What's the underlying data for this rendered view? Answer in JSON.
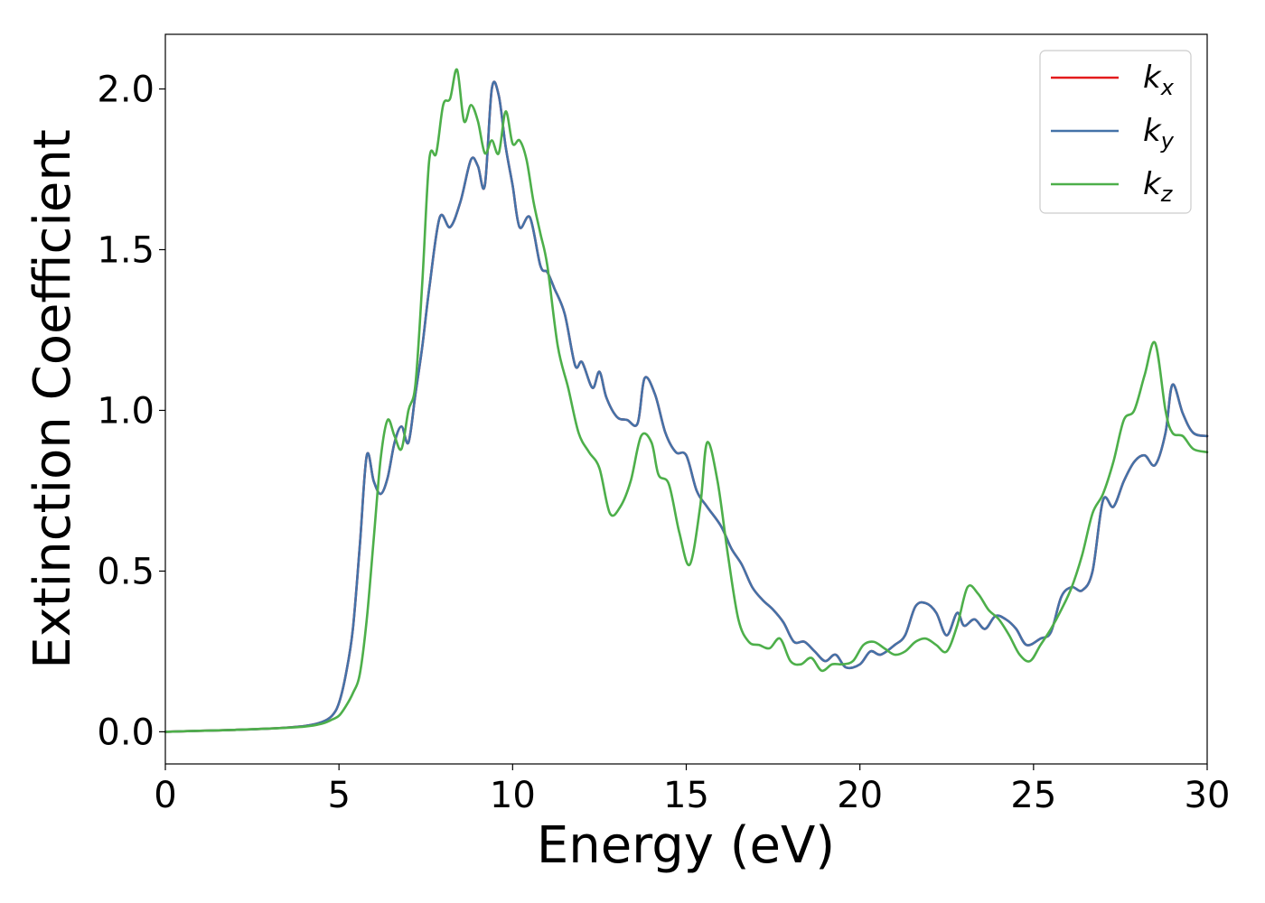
{
  "chart_data": {
    "type": "line",
    "title": "",
    "xlabel": "Energy (eV)",
    "ylabel": "Extinction Coefficient",
    "xlim": [
      0,
      30
    ],
    "ylim": [
      -0.1,
      2.17
    ],
    "x_ticks": [
      "0",
      "5",
      "10",
      "15",
      "20",
      "25",
      "30"
    ],
    "y_ticks": [
      "0.0",
      "0.5",
      "1.0",
      "1.5",
      "2.0"
    ],
    "grid": false,
    "legend_position": "top-right",
    "series": [
      {
        "name": "kx",
        "legend_base": "k",
        "legend_sub": "x",
        "color": "#e31a1c",
        "x": [
          0,
          1,
          2,
          3,
          4,
          4.5,
          4.8,
          5.0,
          5.2,
          5.4,
          5.6,
          5.8,
          6.0,
          6.2,
          6.4,
          6.6,
          6.8,
          7.0,
          7.2,
          7.4,
          7.6,
          7.9,
          8.2,
          8.5,
          8.8,
          9.0,
          9.2,
          9.4,
          9.6,
          9.8,
          10.0,
          10.2,
          10.5,
          10.8,
          11.0,
          11.2,
          11.5,
          11.8,
          12.0,
          12.3,
          12.5,
          12.7,
          13.0,
          13.3,
          13.6,
          13.8,
          14.1,
          14.4,
          14.7,
          15.0,
          15.3,
          15.6,
          16.0,
          16.3,
          16.6,
          16.9,
          17.2,
          17.5,
          17.8,
          18.1,
          18.4,
          18.7,
          19.0,
          19.3,
          19.6,
          20.0,
          20.3,
          20.6,
          21.0,
          21.3,
          21.6,
          21.9,
          22.2,
          22.5,
          22.8,
          23.0,
          23.3,
          23.6,
          23.9,
          24.2,
          24.5,
          24.8,
          25.2,
          25.5,
          25.8,
          26.1,
          26.4,
          26.7,
          27.0,
          27.3,
          27.6,
          27.9,
          28.2,
          28.5,
          28.8,
          29.0,
          29.3,
          29.6,
          30.0
        ],
        "y": [
          0,
          0.003,
          0.006,
          0.01,
          0.018,
          0.03,
          0.05,
          0.09,
          0.18,
          0.32,
          0.58,
          0.86,
          0.78,
          0.74,
          0.79,
          0.9,
          0.95,
          0.9,
          1.05,
          1.2,
          1.38,
          1.6,
          1.57,
          1.65,
          1.78,
          1.76,
          1.7,
          2.0,
          1.98,
          1.82,
          1.7,
          1.57,
          1.6,
          1.45,
          1.43,
          1.38,
          1.3,
          1.14,
          1.15,
          1.07,
          1.12,
          1.04,
          0.98,
          0.97,
          0.96,
          1.1,
          1.05,
          0.93,
          0.87,
          0.86,
          0.75,
          0.7,
          0.64,
          0.57,
          0.52,
          0.45,
          0.41,
          0.38,
          0.34,
          0.28,
          0.28,
          0.25,
          0.22,
          0.24,
          0.2,
          0.21,
          0.25,
          0.24,
          0.27,
          0.3,
          0.39,
          0.4,
          0.37,
          0.3,
          0.37,
          0.33,
          0.35,
          0.32,
          0.36,
          0.35,
          0.32,
          0.27,
          0.29,
          0.31,
          0.42,
          0.45,
          0.44,
          0.5,
          0.72,
          0.7,
          0.78,
          0.84,
          0.86,
          0.83,
          0.93,
          1.08,
          0.99,
          0.93,
          0.92
        ]
      },
      {
        "name": "ky",
        "legend_base": "k",
        "legend_sub": "y",
        "color": "#4472a8",
        "x": [
          0,
          1,
          2,
          3,
          4,
          4.5,
          4.8,
          5.0,
          5.2,
          5.4,
          5.6,
          5.8,
          6.0,
          6.2,
          6.4,
          6.6,
          6.8,
          7.0,
          7.2,
          7.4,
          7.6,
          7.9,
          8.2,
          8.5,
          8.8,
          9.0,
          9.2,
          9.4,
          9.6,
          9.8,
          10.0,
          10.2,
          10.5,
          10.8,
          11.0,
          11.2,
          11.5,
          11.8,
          12.0,
          12.3,
          12.5,
          12.7,
          13.0,
          13.3,
          13.6,
          13.8,
          14.1,
          14.4,
          14.7,
          15.0,
          15.3,
          15.6,
          16.0,
          16.3,
          16.6,
          16.9,
          17.2,
          17.5,
          17.8,
          18.1,
          18.4,
          18.7,
          19.0,
          19.3,
          19.6,
          20.0,
          20.3,
          20.6,
          21.0,
          21.3,
          21.6,
          21.9,
          22.2,
          22.5,
          22.8,
          23.0,
          23.3,
          23.6,
          23.9,
          24.2,
          24.5,
          24.8,
          25.2,
          25.5,
          25.8,
          26.1,
          26.4,
          26.7,
          27.0,
          27.3,
          27.6,
          27.9,
          28.2,
          28.5,
          28.8,
          29.0,
          29.3,
          29.6,
          30.0
        ],
        "y": [
          0,
          0.003,
          0.006,
          0.01,
          0.018,
          0.03,
          0.05,
          0.09,
          0.18,
          0.32,
          0.58,
          0.86,
          0.78,
          0.74,
          0.79,
          0.9,
          0.95,
          0.9,
          1.05,
          1.2,
          1.38,
          1.6,
          1.57,
          1.65,
          1.78,
          1.76,
          1.7,
          2.0,
          1.98,
          1.82,
          1.7,
          1.57,
          1.6,
          1.45,
          1.43,
          1.38,
          1.3,
          1.14,
          1.15,
          1.07,
          1.12,
          1.04,
          0.98,
          0.97,
          0.96,
          1.1,
          1.05,
          0.93,
          0.87,
          0.86,
          0.75,
          0.7,
          0.64,
          0.57,
          0.52,
          0.45,
          0.41,
          0.38,
          0.34,
          0.28,
          0.28,
          0.25,
          0.22,
          0.24,
          0.2,
          0.21,
          0.25,
          0.24,
          0.27,
          0.3,
          0.39,
          0.4,
          0.37,
          0.3,
          0.37,
          0.33,
          0.35,
          0.32,
          0.36,
          0.35,
          0.32,
          0.27,
          0.29,
          0.31,
          0.42,
          0.45,
          0.44,
          0.5,
          0.72,
          0.7,
          0.78,
          0.84,
          0.86,
          0.83,
          0.93,
          1.08,
          0.99,
          0.93,
          0.92
        ]
      },
      {
        "name": "kz",
        "legend_base": "k",
        "legend_sub": "z",
        "color": "#4daf4a",
        "x": [
          0,
          1,
          2,
          3,
          4,
          4.5,
          4.8,
          5.0,
          5.2,
          5.4,
          5.6,
          5.8,
          6.0,
          6.2,
          6.4,
          6.6,
          6.8,
          7.0,
          7.2,
          7.4,
          7.6,
          7.8,
          8.0,
          8.2,
          8.4,
          8.6,
          8.8,
          9.0,
          9.2,
          9.4,
          9.6,
          9.8,
          10.0,
          10.2,
          10.4,
          10.6,
          10.8,
          11.0,
          11.3,
          11.6,
          11.9,
          12.2,
          12.5,
          12.8,
          13.1,
          13.4,
          13.7,
          14.0,
          14.2,
          14.5,
          14.8,
          15.1,
          15.4,
          15.6,
          15.9,
          16.2,
          16.5,
          16.8,
          17.1,
          17.4,
          17.7,
          18.0,
          18.3,
          18.6,
          18.9,
          19.2,
          19.5,
          19.8,
          20.1,
          20.4,
          20.7,
          21.0,
          21.3,
          21.6,
          21.9,
          22.2,
          22.5,
          22.8,
          23.1,
          23.4,
          23.7,
          24.0,
          24.3,
          24.6,
          24.9,
          25.2,
          25.5,
          25.8,
          26.1,
          26.4,
          26.7,
          27.0,
          27.3,
          27.6,
          27.9,
          28.2,
          28.5,
          28.8,
          29.0,
          29.3,
          29.6,
          30.0
        ],
        "y": [
          0,
          0.003,
          0.006,
          0.01,
          0.016,
          0.025,
          0.038,
          0.05,
          0.08,
          0.12,
          0.18,
          0.35,
          0.6,
          0.85,
          0.97,
          0.92,
          0.88,
          1.0,
          1.08,
          1.4,
          1.78,
          1.8,
          1.95,
          1.97,
          2.06,
          1.9,
          1.95,
          1.9,
          1.8,
          1.84,
          1.8,
          1.93,
          1.83,
          1.84,
          1.78,
          1.65,
          1.55,
          1.45,
          1.2,
          1.07,
          0.93,
          0.87,
          0.82,
          0.68,
          0.7,
          0.78,
          0.92,
          0.9,
          0.8,
          0.77,
          0.62,
          0.52,
          0.7,
          0.9,
          0.78,
          0.55,
          0.35,
          0.28,
          0.27,
          0.26,
          0.29,
          0.22,
          0.21,
          0.23,
          0.19,
          0.21,
          0.21,
          0.22,
          0.27,
          0.28,
          0.26,
          0.24,
          0.25,
          0.28,
          0.29,
          0.27,
          0.25,
          0.33,
          0.45,
          0.43,
          0.38,
          0.35,
          0.3,
          0.24,
          0.22,
          0.27,
          0.32,
          0.38,
          0.45,
          0.55,
          0.68,
          0.74,
          0.84,
          0.97,
          1.0,
          1.11,
          1.21,
          1.0,
          0.93,
          0.92,
          0.88,
          0.87
        ]
      }
    ]
  }
}
